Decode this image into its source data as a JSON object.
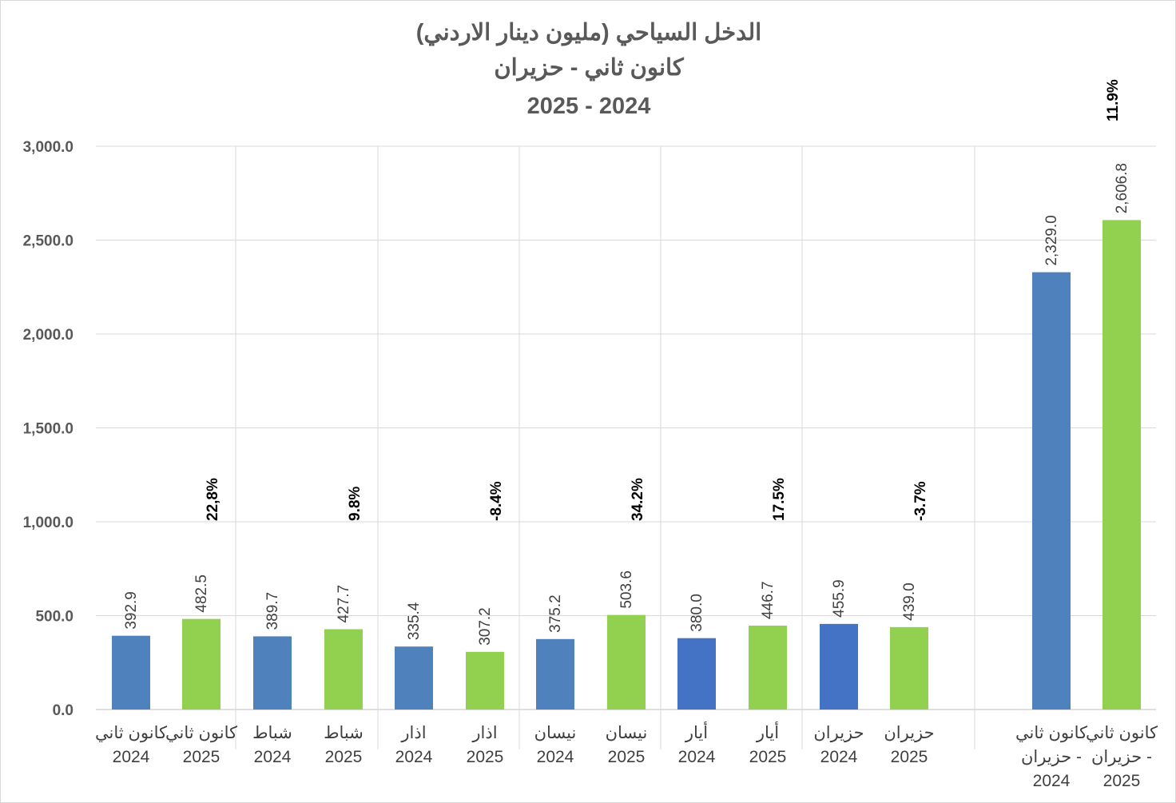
{
  "chart_data": {
    "type": "bar",
    "title": [
      "الدخل السياحي (مليون دينار الاردني)",
      "كانون ثاني - حزيران",
      "2025 - 2024"
    ],
    "xlabel": "",
    "ylabel": "",
    "ylim": [
      0,
      3000
    ],
    "yticks": [
      "0.0",
      "500.0",
      "1,000.0",
      "1,500.0",
      "2,000.0",
      "2,500.0",
      "3,000.0"
    ],
    "grid": true,
    "categories": [
      [
        "كانون ثاني",
        "2024"
      ],
      [
        "كانون ثاني",
        "2025"
      ],
      [
        "شباط",
        "2024"
      ],
      [
        "شباط",
        "2025"
      ],
      [
        "اذار",
        "2024"
      ],
      [
        "اذار",
        "2025"
      ],
      [
        "نيسان",
        "2024"
      ],
      [
        "نيسان",
        "2025"
      ],
      [
        "أيار",
        "2024"
      ],
      [
        "أيار",
        "2025"
      ],
      [
        "حزيران",
        "2024"
      ],
      [
        "حزيران",
        "2025"
      ],
      [
        "كانون ثاني",
        "- حزيران",
        "2024"
      ],
      [
        "كانون ثاني",
        "- حزيران",
        "2025"
      ]
    ],
    "values": [
      392.9,
      482.5,
      389.7,
      427.7,
      335.4,
      307.2,
      375.2,
      503.6,
      380.0,
      446.7,
      455.9,
      439.0,
      2329.0,
      2606.8
    ],
    "value_labels": [
      "392.9",
      "482.5",
      "389.7",
      "427.7",
      "335.4",
      "307.2",
      "375.2",
      "503.6",
      "380.0",
      "446.7",
      "455.9",
      "439.0",
      "2,329.0",
      "2,606.8"
    ],
    "bar_colors": [
      "#4f81bd",
      "#92d050",
      "#4f81bd",
      "#92d050",
      "#4f81bd",
      "#92d050",
      "#4f81bd",
      "#92d050",
      "#4472c4",
      "#92d050",
      "#4472c4",
      "#92d050",
      "#4f81bd",
      "#92d050"
    ],
    "growth_labels": [
      {
        "bar": 1,
        "text": "22,8%"
      },
      {
        "bar": 3,
        "text": "9.8%"
      },
      {
        "bar": 5,
        "text": "-8.4%"
      },
      {
        "bar": 7,
        "text": "34.2%"
      },
      {
        "bar": 9,
        "text": "17.5%"
      },
      {
        "bar": 11,
        "text": "-3.7%"
      },
      {
        "bar": 13,
        "text": "11.9%"
      }
    ]
  }
}
